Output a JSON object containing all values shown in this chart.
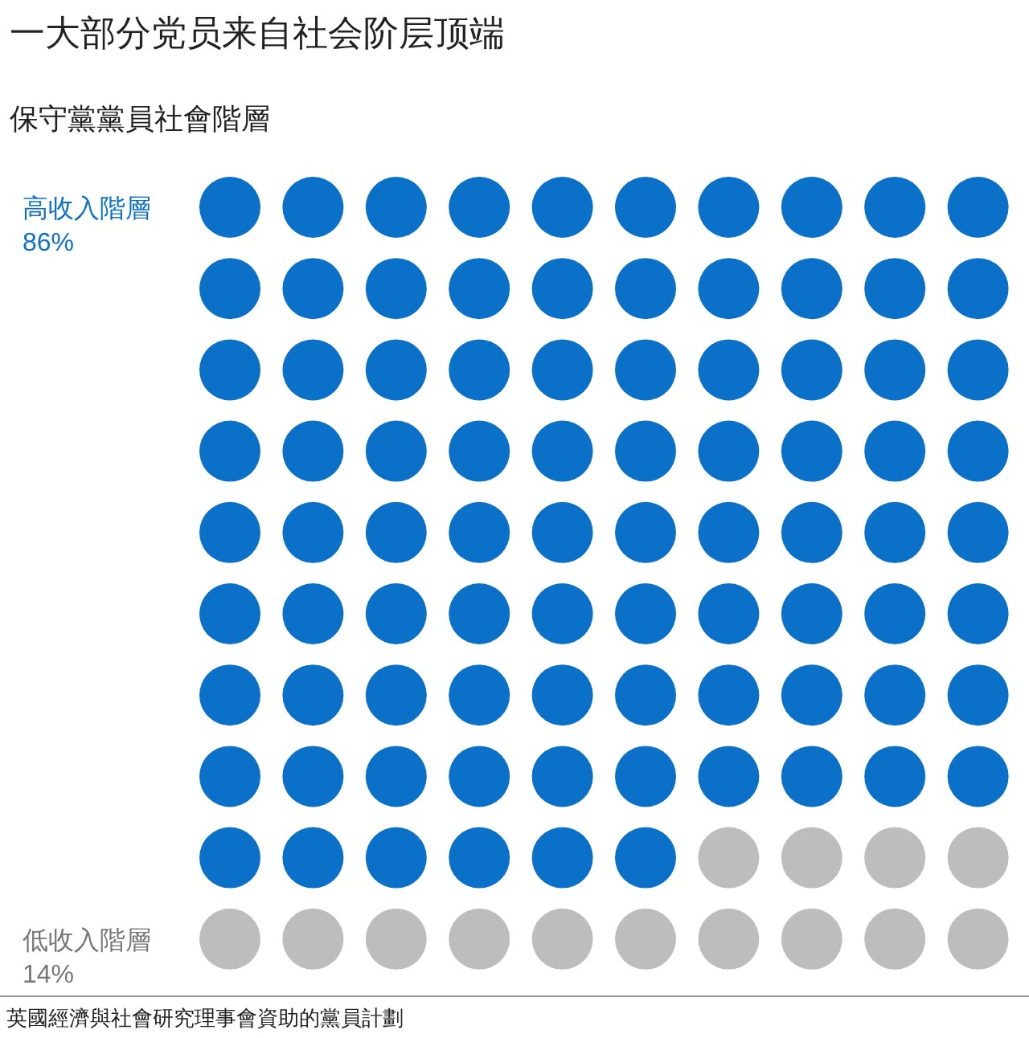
{
  "chart_data": {
    "type": "other",
    "title": "一大部分党员来自社会阶层顶端",
    "subtitle": "保守黨黨員社會階層",
    "categories": [
      "高收入階層",
      "低收入階層"
    ],
    "values": [
      86,
      14
    ],
    "colors": [
      "#0b71c8",
      "#bdbdbd"
    ],
    "value_labels": [
      "86%",
      "14%"
    ],
    "annotations": [
      "英國經濟與社會研究理事會資助的黨員計劃"
    ]
  }
}
